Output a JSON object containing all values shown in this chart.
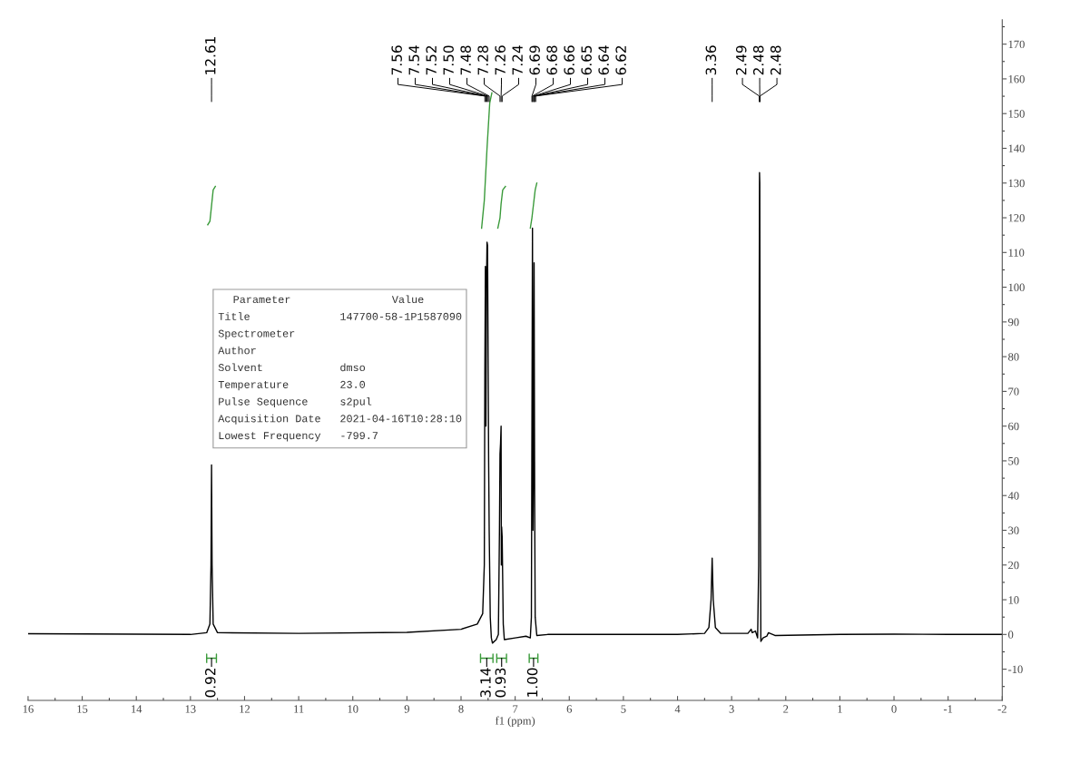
{
  "chart_data": {
    "type": "line",
    "xlabel": "f1 (ppm)",
    "xlim": [
      16,
      -2
    ],
    "xticks": [
      16,
      15,
      14,
      13,
      12,
      11,
      10,
      9,
      8,
      7,
      6,
      5,
      4,
      3,
      2,
      1,
      0,
      -1,
      -2
    ],
    "ylim": [
      -19,
      177
    ],
    "yticks": [
      -10,
      0,
      10,
      20,
      30,
      40,
      50,
      60,
      70,
      80,
      90,
      100,
      110,
      120,
      130,
      140,
      150,
      160,
      170
    ],
    "series": [
      {
        "color": "#000000",
        "x": [
          16,
          14,
          13,
          12.7,
          12.64,
          12.62,
          12.61,
          12.6,
          12.58,
          12.5,
          11,
          9,
          8,
          7.7,
          7.6,
          7.57,
          7.56,
          7.55,
          7.54,
          7.53,
          7.52,
          7.51,
          7.5,
          7.49,
          7.48,
          7.46,
          7.44,
          7.42,
          7.35,
          7.31,
          7.29,
          7.28,
          7.27,
          7.26,
          7.255,
          7.25,
          7.24,
          7.22,
          7.2,
          7.0,
          6.8,
          6.72,
          6.7,
          6.69,
          6.68,
          6.67,
          6.66,
          6.65,
          6.64,
          6.63,
          6.6,
          6.4,
          5,
          4,
          3.5,
          3.42,
          3.38,
          3.36,
          3.34,
          3.3,
          3.2,
          2.7,
          2.64,
          2.62,
          2.56,
          2.52,
          2.5,
          2.49,
          2.485,
          2.48,
          2.47,
          2.46,
          2.42,
          2.35,
          2.32,
          2.2,
          1,
          0,
          -1,
          -2
        ],
        "values": [
          0.2,
          0.1,
          0,
          0.5,
          3,
          20,
          48.8,
          20,
          3,
          0.5,
          0.3,
          0.6,
          1.5,
          3,
          6,
          20,
          75,
          106,
          60,
          100,
          113,
          112,
          80,
          50,
          30,
          5,
          -1,
          -2.5,
          -1.5,
          0,
          30,
          52,
          55,
          60,
          20,
          31,
          28,
          3,
          -1.5,
          -1,
          -0.5,
          -1,
          5,
          60,
          117,
          30,
          50,
          107,
          40,
          5,
          -0.3,
          0,
          0,
          0,
          0.3,
          2,
          10,
          22,
          10,
          2,
          0.3,
          0.3,
          1.5,
          0.5,
          1,
          -1,
          20,
          100,
          133,
          130,
          40,
          -2,
          -1,
          -0.5,
          0.5,
          -0.3,
          0,
          0.1,
          0,
          0
        ]
      },
      {
        "color": "#3a9a3a",
        "x": [
          12.68,
          12.64,
          12.61,
          12.58,
          12.54
        ],
        "values": [
          118,
          119,
          123.5,
          128,
          129
        ]
      },
      {
        "color": "#3a9a3a",
        "x": [
          7.62,
          7.57,
          7.52,
          7.47,
          7.43
        ],
        "values": [
          117,
          125,
          140,
          153,
          156
        ]
      },
      {
        "color": "#3a9a3a",
        "x": [
          7.32,
          7.28,
          7.26,
          7.23,
          7.18
        ],
        "values": [
          117,
          120,
          124,
          128,
          129
        ]
      },
      {
        "color": "#3a9a3a",
        "x": [
          6.72,
          6.69,
          6.66,
          6.63,
          6.6
        ],
        "values": [
          117,
          120,
          124,
          128,
          130
        ]
      }
    ],
    "annotations": [
      "Parameter",
      "Value",
      "Title",
      "147700-58-1P1587090",
      "Spectrometer",
      null,
      "Author",
      null,
      "Solvent",
      "dmso",
      "Temperature",
      "23.0",
      "Pulse Sequence",
      "s2pul",
      "Acquisition Date",
      "2021-04-16T10:28:10",
      "Lowest Frequency",
      "-799.7",
      "0.92",
      "3.14",
      "0.93",
      "1.00",
      {
        "text": "12.61",
        "x": 12.61
      },
      {
        "text": "7.56",
        "x": 7.56
      },
      {
        "text": "7.54",
        "x": 7.54
      },
      {
        "text": "7.52",
        "x": 7.52
      },
      {
        "text": "7.50",
        "x": 7.5
      },
      {
        "text": "7.48",
        "x": 7.48
      },
      {
        "text": "7.28",
        "x": 7.28
      },
      {
        "text": "7.26",
        "x": 7.26
      },
      {
        "text": "7.24",
        "x": 7.24
      },
      {
        "text": "6.69",
        "x": 6.69
      },
      {
        "text": "6.68",
        "x": 6.68
      },
      {
        "text": "6.66",
        "x": 6.66
      },
      {
        "text": "6.65",
        "x": 6.65
      },
      {
        "text": "6.64",
        "x": 6.64
      },
      {
        "text": "6.62",
        "x": 6.62
      },
      {
        "text": "3.36",
        "x": 3.36
      },
      {
        "text": "2.49",
        "x": 2.49
      },
      {
        "text": "2.48",
        "x": 2.48
      },
      {
        "text": "2.48",
        "x": 2.475
      }
    ]
  }
}
